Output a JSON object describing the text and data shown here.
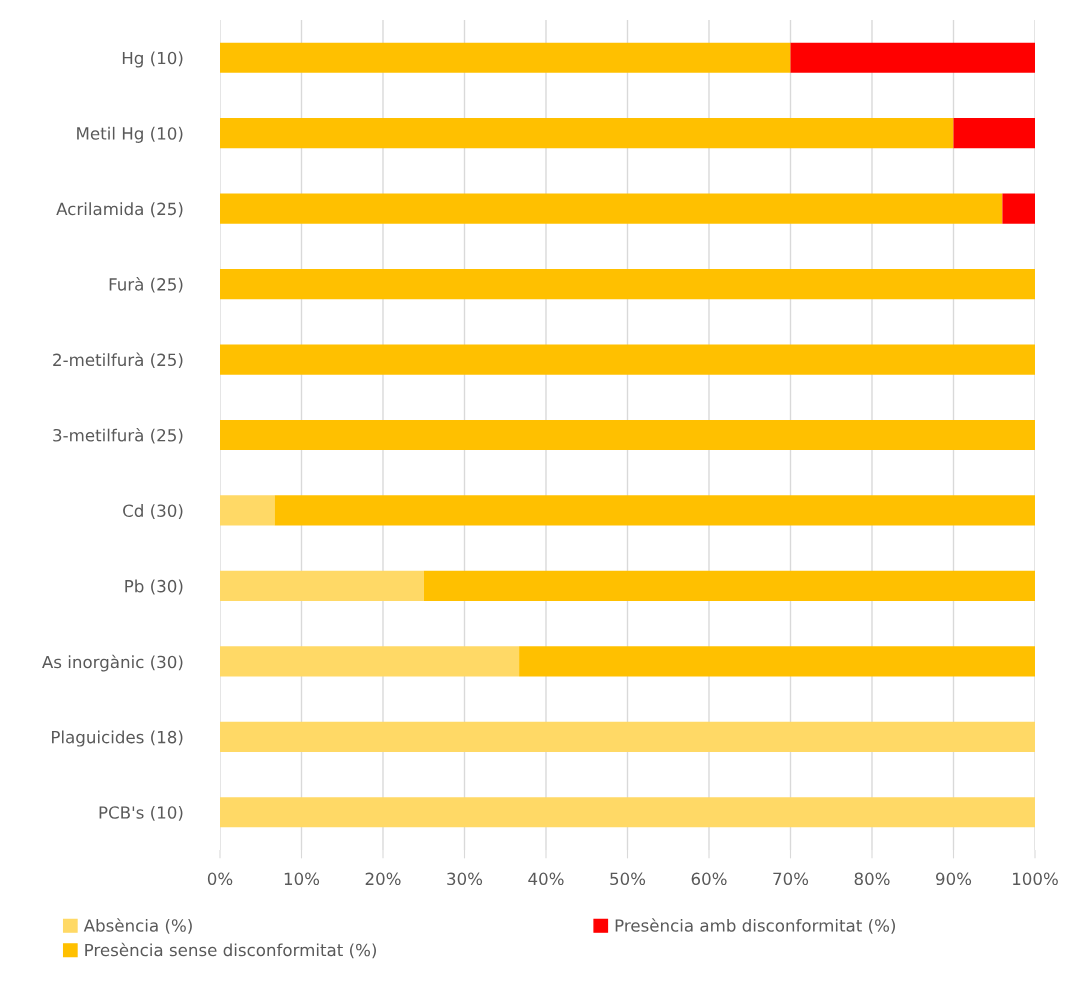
{
  "chart_data": {
    "type": "bar",
    "orientation": "horizontal",
    "stacked": true,
    "categories": [
      "Hg (10)",
      "Metil Hg (10)",
      "Acrilamida (25)",
      "Furà (25)",
      "2-metilfurà (25)",
      "3-metilfurà (25)",
      "Cd (30)",
      "Pb (30)",
      "As inorgànic (30)",
      "Plaguicides (18)",
      "PCB's (10)"
    ],
    "series": [
      {
        "name": "Absència (%)",
        "color": "#ffd966",
        "values": [
          0,
          0,
          0,
          0,
          0,
          0,
          6.7,
          25,
          36.7,
          100,
          100
        ]
      },
      {
        "name": "Presència sense disconformitat (%)",
        "color": "#ffc000",
        "values": [
          70,
          90,
          96,
          100,
          100,
          100,
          93.3,
          75,
          63.3,
          0,
          0
        ]
      },
      {
        "name": "Presència amb disconformitat (%)",
        "color": "#ff0000",
        "values": [
          30,
          10,
          4,
          0,
          0,
          0,
          0,
          0,
          0,
          0,
          0
        ]
      }
    ],
    "xlim": [
      0,
      100
    ],
    "xticks": [
      {
        "value": 0,
        "label": "0%"
      },
      {
        "value": 10,
        "label": "10%"
      },
      {
        "value": 20,
        "label": "20%"
      },
      {
        "value": 30,
        "label": "30%"
      },
      {
        "value": 40,
        "label": "40%"
      },
      {
        "value": 50,
        "label": "50%"
      },
      {
        "value": 60,
        "label": "60%"
      },
      {
        "value": 70,
        "label": "70%"
      },
      {
        "value": 80,
        "label": "80%"
      },
      {
        "value": 90,
        "label": "90%"
      },
      {
        "value": 100,
        "label": "100%"
      }
    ],
    "grid": "x",
    "legend": "bottom"
  }
}
